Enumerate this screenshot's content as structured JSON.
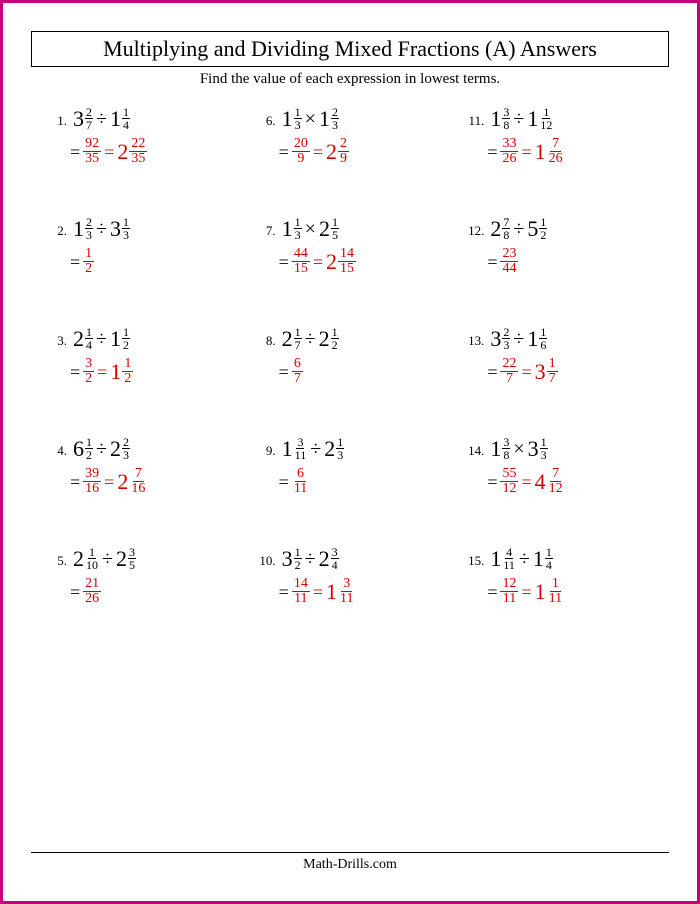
{
  "title": "Multiplying and Dividing Mixed Fractions (A) Answers",
  "subtitle": "Find the value of each expression in lowest terms.",
  "footer": "Math-Drills.com",
  "border_color": "#c4007a",
  "answer_color": "#d40000",
  "font_family": "Times New Roman",
  "layout": {
    "columns": 3,
    "rows": 5
  },
  "problems": [
    {
      "n": "1.",
      "a": {
        "w": "3",
        "num": "2",
        "den": "7"
      },
      "op": "÷",
      "b": {
        "w": "1",
        "num": "1",
        "den": "4"
      },
      "ans_frac": {
        "num": "92",
        "den": "35"
      },
      "ans_mixed": {
        "w": "2",
        "num": "22",
        "den": "35"
      }
    },
    {
      "n": "2.",
      "a": {
        "w": "1",
        "num": "2",
        "den": "3"
      },
      "op": "÷",
      "b": {
        "w": "3",
        "num": "1",
        "den": "3"
      },
      "ans_frac": {
        "num": "1",
        "den": "2"
      }
    },
    {
      "n": "3.",
      "a": {
        "w": "2",
        "num": "1",
        "den": "4"
      },
      "op": "÷",
      "b": {
        "w": "1",
        "num": "1",
        "den": "2"
      },
      "ans_frac": {
        "num": "3",
        "den": "2"
      },
      "ans_mixed": {
        "w": "1",
        "num": "1",
        "den": "2"
      }
    },
    {
      "n": "4.",
      "a": {
        "w": "6",
        "num": "1",
        "den": "2"
      },
      "op": "÷",
      "b": {
        "w": "2",
        "num": "2",
        "den": "3"
      },
      "ans_frac": {
        "num": "39",
        "den": "16"
      },
      "ans_mixed": {
        "w": "2",
        "num": "7",
        "den": "16"
      }
    },
    {
      "n": "5.",
      "a": {
        "w": "2",
        "num": "1",
        "den": "10"
      },
      "op": "÷",
      "b": {
        "w": "2",
        "num": "3",
        "den": "5"
      },
      "ans_frac": {
        "num": "21",
        "den": "26"
      }
    },
    {
      "n": "6.",
      "a": {
        "w": "1",
        "num": "1",
        "den": "3"
      },
      "op": "×",
      "b": {
        "w": "1",
        "num": "2",
        "den": "3"
      },
      "ans_frac": {
        "num": "20",
        "den": "9"
      },
      "ans_mixed": {
        "w": "2",
        "num": "2",
        "den": "9"
      }
    },
    {
      "n": "7.",
      "a": {
        "w": "1",
        "num": "1",
        "den": "3"
      },
      "op": "×",
      "b": {
        "w": "2",
        "num": "1",
        "den": "5"
      },
      "ans_frac": {
        "num": "44",
        "den": "15"
      },
      "ans_mixed": {
        "w": "2",
        "num": "14",
        "den": "15"
      }
    },
    {
      "n": "8.",
      "a": {
        "w": "2",
        "num": "1",
        "den": "7"
      },
      "op": "÷",
      "b": {
        "w": "2",
        "num": "1",
        "den": "2"
      },
      "ans_frac": {
        "num": "6",
        "den": "7"
      }
    },
    {
      "n": "9.",
      "a": {
        "w": "1",
        "num": "3",
        "den": "11"
      },
      "op": "÷",
      "b": {
        "w": "2",
        "num": "1",
        "den": "3"
      },
      "ans_frac": {
        "num": "6",
        "den": "11"
      }
    },
    {
      "n": "10.",
      "a": {
        "w": "3",
        "num": "1",
        "den": "2"
      },
      "op": "÷",
      "b": {
        "w": "2",
        "num": "3",
        "den": "4"
      },
      "ans_frac": {
        "num": "14",
        "den": "11"
      },
      "ans_mixed": {
        "w": "1",
        "num": "3",
        "den": "11"
      }
    },
    {
      "n": "11.",
      "a": {
        "w": "1",
        "num": "3",
        "den": "8"
      },
      "op": "÷",
      "b": {
        "w": "1",
        "num": "1",
        "den": "12"
      },
      "ans_frac": {
        "num": "33",
        "den": "26"
      },
      "ans_mixed": {
        "w": "1",
        "num": "7",
        "den": "26"
      }
    },
    {
      "n": "12.",
      "a": {
        "w": "2",
        "num": "7",
        "den": "8"
      },
      "op": "÷",
      "b": {
        "w": "5",
        "num": "1",
        "den": "2"
      },
      "ans_frac": {
        "num": "23",
        "den": "44"
      }
    },
    {
      "n": "13.",
      "a": {
        "w": "3",
        "num": "2",
        "den": "3"
      },
      "op": "÷",
      "b": {
        "w": "1",
        "num": "1",
        "den": "6"
      },
      "ans_frac": {
        "num": "22",
        "den": "7"
      },
      "ans_mixed": {
        "w": "3",
        "num": "1",
        "den": "7"
      }
    },
    {
      "n": "14.",
      "a": {
        "w": "1",
        "num": "3",
        "den": "8"
      },
      "op": "×",
      "b": {
        "w": "3",
        "num": "1",
        "den": "3"
      },
      "ans_frac": {
        "num": "55",
        "den": "12"
      },
      "ans_mixed": {
        "w": "4",
        "num": "7",
        "den": "12"
      }
    },
    {
      "n": "15.",
      "a": {
        "w": "1",
        "num": "4",
        "den": "11"
      },
      "op": "÷",
      "b": {
        "w": "1",
        "num": "1",
        "den": "4"
      },
      "ans_frac": {
        "num": "12",
        "den": "11"
      },
      "ans_mixed": {
        "w": "1",
        "num": "1",
        "den": "11"
      }
    }
  ]
}
